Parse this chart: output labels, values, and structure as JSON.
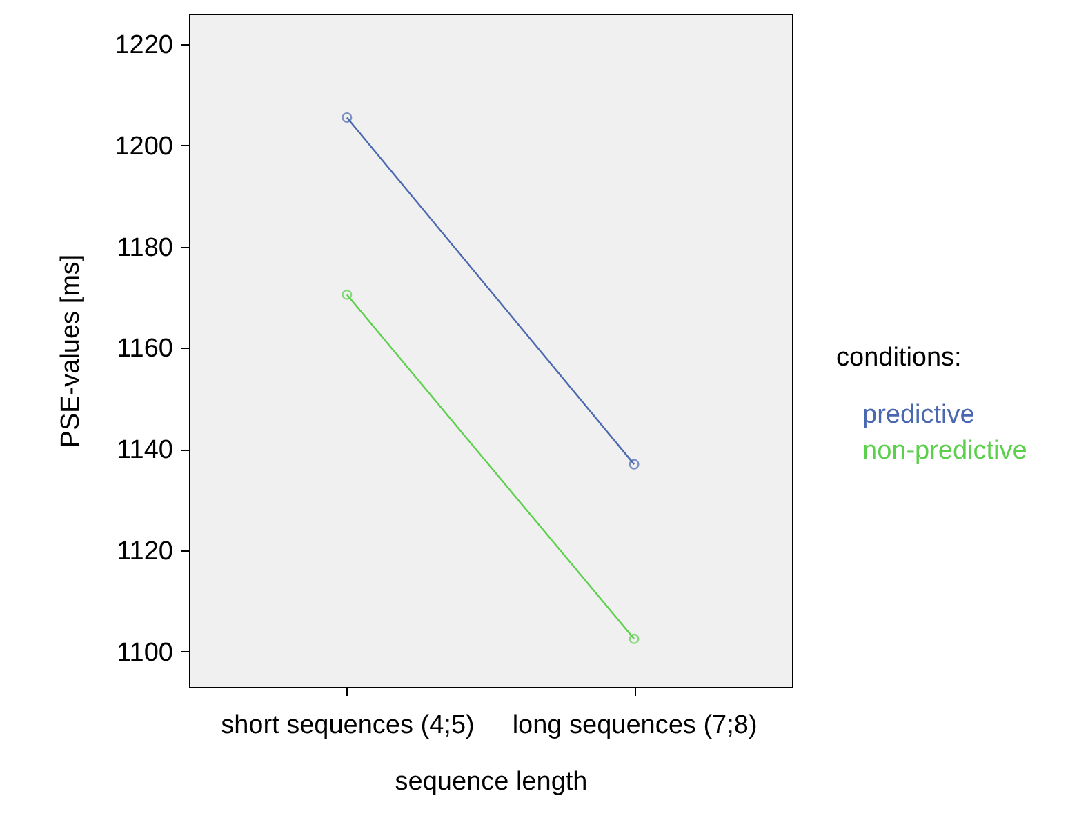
{
  "chart_data": {
    "type": "line",
    "xlabel": "sequence length",
    "ylabel": "PSE-values [ms]",
    "legend_title": "conditions:",
    "legend": "right",
    "marker": "circle",
    "categories": [
      "short sequences  (4;5)",
      "long sequences (7;8)"
    ],
    "ylim": [
      1093,
      1226
    ],
    "yticks": [
      1100,
      1120,
      1140,
      1160,
      1180,
      1200,
      1220
    ],
    "grid": false,
    "series": [
      {
        "name": "predictive",
        "color": "#4a68b0",
        "values": [
          1205.5,
          1137
        ]
      },
      {
        "name": "non-predictive",
        "color": "#5ccf4c",
        "values": [
          1170.5,
          1102.5
        ]
      }
    ]
  }
}
